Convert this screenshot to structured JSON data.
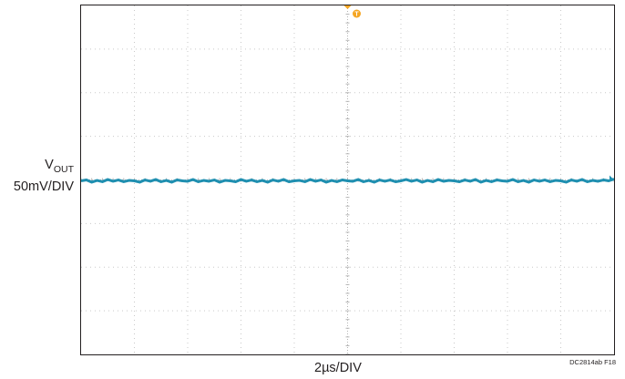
{
  "chart_data": {
    "type": "line",
    "title": "",
    "grid": true,
    "xdivs": 10,
    "ydivs": 8,
    "xlabel": "2µs/DIV",
    "figure_id": "DC2814ab F18",
    "trigger_marker": "T",
    "channel": {
      "name_main": "V",
      "name_sub": "OUT",
      "scale": "50mV/DIV",
      "color": "#1f8fb0"
    },
    "trigger_color": "#f5a623",
    "series": [
      {
        "values_div": [
          0.0,
          0.02,
          -0.03,
          0.01,
          -0.02,
          0.03,
          -0.01,
          0.02,
          -0.02,
          0.01,
          0.0,
          -0.03,
          0.02,
          -0.01,
          0.03,
          -0.02,
          0.01,
          -0.03,
          0.02,
          0.0,
          -0.01,
          0.03,
          -0.02,
          0.01,
          -0.01,
          0.02,
          -0.03,
          0.01,
          0.0,
          -0.02,
          0.03,
          -0.01,
          0.02,
          -0.02,
          0.01,
          -0.03,
          0.02,
          -0.01,
          0.03,
          -0.02,
          0.0,
          0.01,
          -0.02,
          0.03,
          -0.01,
          0.02,
          -0.03,
          0.01,
          -0.02,
          0.02,
          0.0,
          -0.01,
          0.03,
          -0.02,
          0.01,
          -0.03,
          0.02,
          -0.01,
          0.02,
          -0.02,
          0.0,
          0.03,
          -0.01,
          0.02,
          -0.03,
          0.01,
          -0.02,
          0.03,
          -0.01,
          0.01,
          0.0,
          -0.02,
          0.02,
          -0.01,
          0.03,
          -0.03,
          0.01,
          -0.02,
          0.02,
          0.0,
          -0.01,
          0.03,
          -0.02,
          0.01,
          -0.03,
          0.02,
          -0.01,
          0.02,
          -0.02,
          0.01,
          0.0,
          -0.03,
          0.02,
          -0.01,
          0.03,
          -0.02,
          0.01,
          -0.01,
          0.02,
          0.0,
          0.04
        ]
      }
    ]
  }
}
